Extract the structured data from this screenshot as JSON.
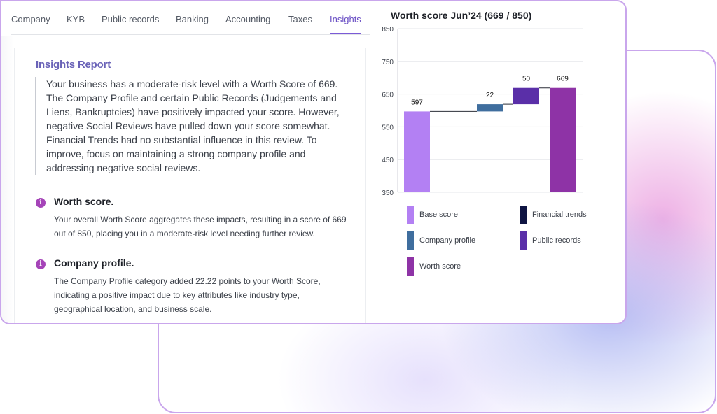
{
  "tabs": [
    {
      "label": "Company"
    },
    {
      "label": "KYB"
    },
    {
      "label": "Public records"
    },
    {
      "label": "Banking"
    },
    {
      "label": "Accounting"
    },
    {
      "label": "Taxes"
    },
    {
      "label": "Insights",
      "active": true
    }
  ],
  "report": {
    "title": "Insights Report",
    "summary": "Your business has a moderate-risk level with a Worth Score of 669. The Company Profile and certain Public Records (Judgements and Liens, Bankruptcies) have positively impacted your score. However, negative Social Reviews have pulled down your score somewhat. Financial Trends had no substantial influence in this review. To improve, focus on maintaining a strong company profile and addressing negative social reviews.",
    "insights": [
      {
        "icon": "info-icon",
        "title": "Worth score.",
        "body": "Your overall Worth Score aggregates these impacts, resulting in a score of 669 out of 850, placing you in a moderate-risk level needing further review."
      },
      {
        "icon": "info-icon",
        "title": "Company profile.",
        "body": "The Company Profile category added 22.22 points to your Worth Score, indicating a positive impact due to key attributes like industry type, geographical location, and business scale."
      }
    ]
  },
  "colors": {
    "accent": "#7b5bd6",
    "base_score": "#b380f3",
    "company_profile": "#3f6e9e",
    "financial_trends": "#0f1442",
    "public_records": "#5a2fa8",
    "worth_score": "#8e33a6"
  },
  "chart_data": {
    "type": "bar",
    "subtype": "waterfall",
    "title": "Worth score Jun’24 (669 / 850)",
    "ylim": [
      350,
      850
    ],
    "yticks": [
      350,
      450,
      550,
      650,
      750,
      850
    ],
    "grid": true,
    "bars": [
      {
        "name": "Base score",
        "start": 350,
        "end": 597,
        "label": "597",
        "color": "#b380f3"
      },
      {
        "name": "Company profile",
        "start": 597,
        "end": 619,
        "label": "22",
        "color": "#3f6e9e"
      },
      {
        "name": "Public records",
        "start": 619,
        "end": 669,
        "label": "50",
        "color": "#5a2fa8"
      },
      {
        "name": "Worth score",
        "start": 350,
        "end": 669,
        "label": "669",
        "color": "#8e33a6"
      }
    ],
    "legend": [
      {
        "name": "Base score",
        "color": "#b380f3"
      },
      {
        "name": "Financial trends",
        "color": "#0f1442"
      },
      {
        "name": "Company profile",
        "color": "#3f6e9e"
      },
      {
        "name": "Public records",
        "color": "#5a2fa8"
      },
      {
        "name": "Worth score",
        "color": "#8e33a6"
      }
    ],
    "legend_position": "bottom"
  }
}
